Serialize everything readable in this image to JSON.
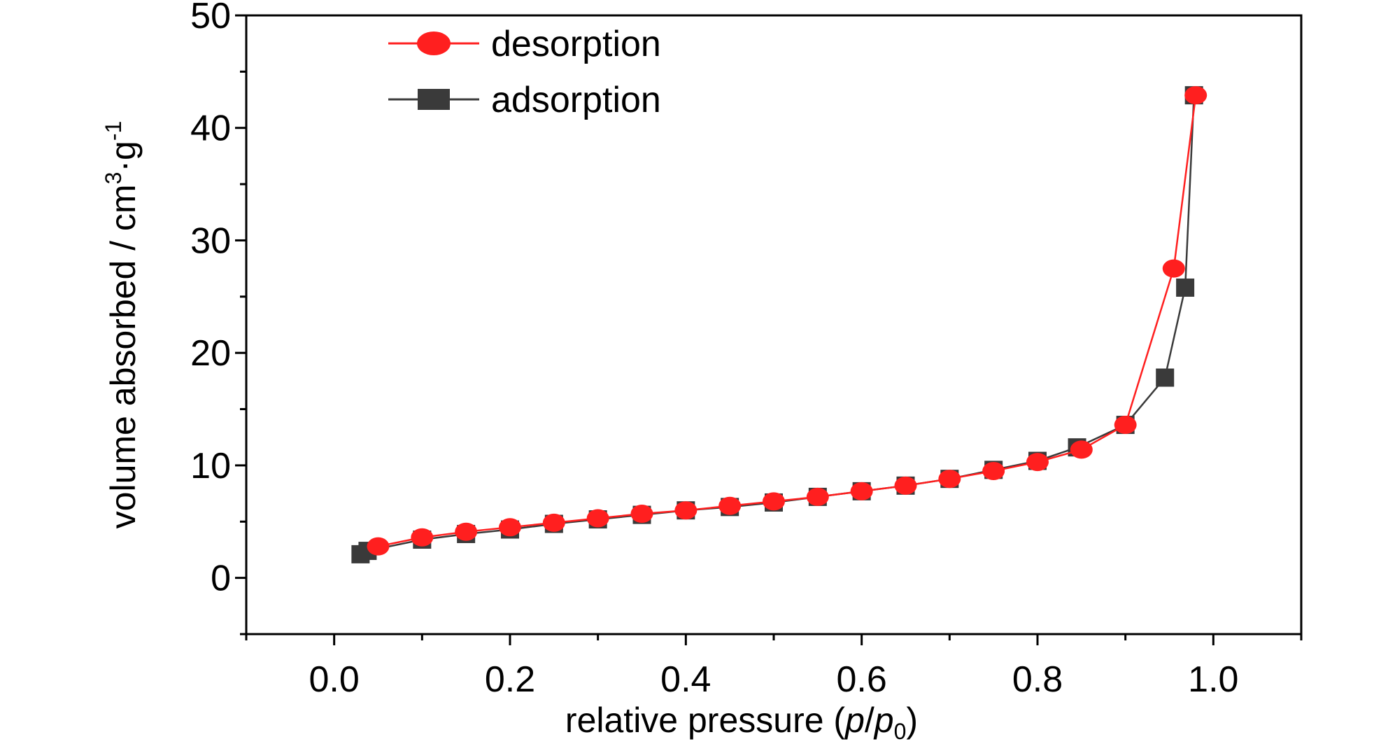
{
  "chart_data": {
    "type": "line",
    "xlabel": "relative pressure (p/p0)",
    "xlabel_parts": {
      "pre": "relative pressure (",
      "p": "p",
      "slash": "/",
      "p0": "p",
      "sub0": "0",
      "post": ")"
    },
    "ylabel": "volume absorbed / cm3·g-1",
    "ylabel_parts": {
      "main": "volume absorbed / cm",
      "sup3": "3",
      "dot": "·g",
      "supneg1": "-1"
    },
    "xlim": [
      -0.1,
      1.1
    ],
    "ylim": [
      -5,
      50
    ],
    "xticks": [
      0.0,
      0.2,
      0.4,
      0.6,
      0.8,
      1.0
    ],
    "xtick_labels": [
      "0.0",
      "0.2",
      "0.4",
      "0.6",
      "0.8",
      "1.0"
    ],
    "yticks": [
      0,
      10,
      20,
      30,
      40,
      50
    ],
    "ytick_labels": [
      "0",
      "10",
      "20",
      "30",
      "40",
      "50"
    ],
    "grid": false,
    "legend_position": "top-left",
    "series": [
      {
        "name": "desorption",
        "color": "#ff1f1f",
        "marker": "circle",
        "points": [
          [
            0.05,
            2.8
          ],
          [
            0.1,
            3.6
          ],
          [
            0.15,
            4.1
          ],
          [
            0.2,
            4.5
          ],
          [
            0.25,
            4.9
          ],
          [
            0.3,
            5.3
          ],
          [
            0.35,
            5.7
          ],
          [
            0.4,
            6.0
          ],
          [
            0.45,
            6.4
          ],
          [
            0.5,
            6.8
          ],
          [
            0.55,
            7.2
          ],
          [
            0.6,
            7.7
          ],
          [
            0.65,
            8.2
          ],
          [
            0.7,
            8.8
          ],
          [
            0.75,
            9.5
          ],
          [
            0.8,
            10.3
          ],
          [
            0.85,
            11.4
          ],
          [
            0.9,
            13.6
          ],
          [
            0.955,
            27.5
          ],
          [
            0.98,
            42.9
          ]
        ]
      },
      {
        "name": "adsorption",
        "color": "#3a3a3a",
        "marker": "square",
        "points": [
          [
            0.03,
            2.1
          ],
          [
            0.038,
            2.4
          ],
          [
            0.1,
            3.4
          ],
          [
            0.15,
            3.9
          ],
          [
            0.2,
            4.3
          ],
          [
            0.25,
            4.8
          ],
          [
            0.3,
            5.2
          ],
          [
            0.35,
            5.6
          ],
          [
            0.4,
            6.0
          ],
          [
            0.45,
            6.3
          ],
          [
            0.5,
            6.7
          ],
          [
            0.55,
            7.2
          ],
          [
            0.6,
            7.7
          ],
          [
            0.65,
            8.2
          ],
          [
            0.7,
            8.8
          ],
          [
            0.75,
            9.6
          ],
          [
            0.8,
            10.4
          ],
          [
            0.845,
            11.6
          ],
          [
            0.9,
            13.6
          ],
          [
            0.945,
            17.8
          ],
          [
            0.968,
            25.8
          ],
          [
            0.978,
            42.9
          ]
        ]
      }
    ]
  }
}
